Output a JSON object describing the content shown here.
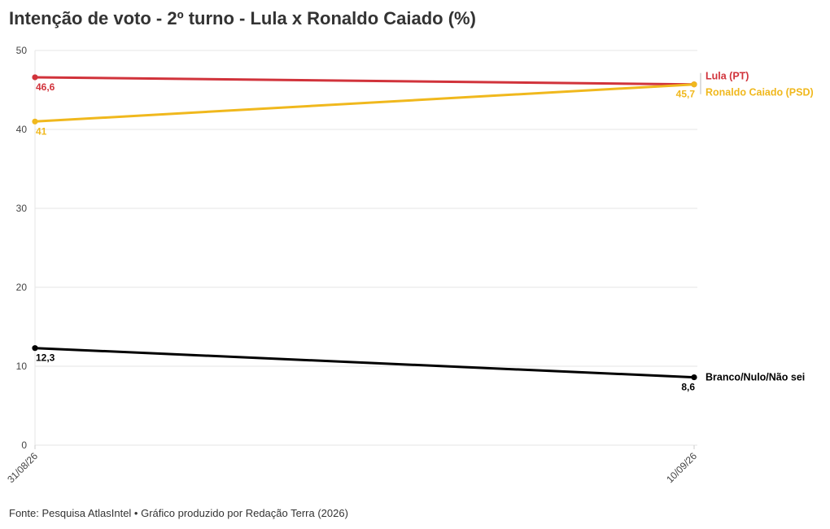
{
  "title": "Intenção de voto - 2º turno - Lula x Ronaldo Caiado (%)",
  "footer": "Fonte: Pesquisa AtlasIntel • Gráfico produzido por Redação Terra (2026)",
  "chart_data": {
    "type": "line",
    "title": "Intenção de voto - 2º turno - Lula x Ronaldo Caiado (%)",
    "x": [
      "31/08/26",
      "10/09/26"
    ],
    "ylim": [
      0,
      50
    ],
    "yticks": [
      0,
      10,
      20,
      30,
      40,
      50
    ],
    "grid": true,
    "legend": "right (direct labels at line ends)",
    "series": [
      {
        "name": "Lula (PT)",
        "color": "#d1333b",
        "values": [
          46.6,
          45.7
        ],
        "labels": [
          "46,6",
          ""
        ]
      },
      {
        "name": "Ronaldo Caiado (PSD)",
        "color": "#f0b81d",
        "values": [
          41,
          45.7
        ],
        "labels": [
          "41",
          "45,7"
        ]
      },
      {
        "name": "Branco/Nulo/Não sei",
        "color": "#000000",
        "values": [
          12.3,
          8.6
        ],
        "labels": [
          "12,3",
          "8,6"
        ]
      }
    ]
  }
}
